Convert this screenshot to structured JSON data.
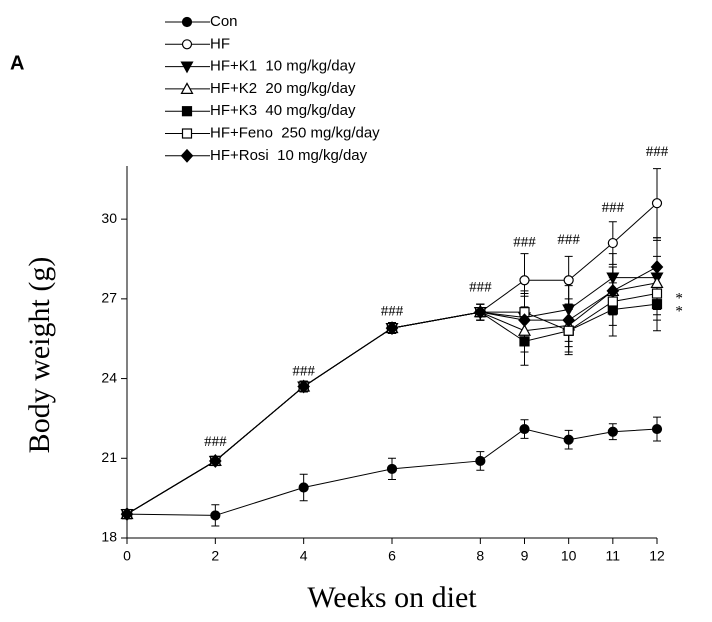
{
  "chart_data": {
    "type": "line",
    "panel_label": "A",
    "xlabel": "Weeks on diet",
    "ylabel": "Body weight (g)",
    "x": [
      0,
      2,
      4,
      6,
      8,
      9,
      10,
      11,
      12
    ],
    "xlim": [
      0,
      12
    ],
    "xticks": [
      0,
      2,
      4,
      6,
      8,
      9,
      10,
      11,
      12
    ],
    "ylim": [
      18,
      32
    ],
    "yticks": [
      18,
      21,
      24,
      27,
      30
    ],
    "grid": false,
    "legend": "top-left",
    "series": [
      {
        "name": "Con",
        "color": "#000000",
        "marker": "circle-filled",
        "values": [
          18.9,
          18.85,
          19.9,
          20.6,
          20.9,
          22.1,
          21.7,
          22.0,
          22.1
        ],
        "errors": [
          0.15,
          0.4,
          0.5,
          0.4,
          0.35,
          0.35,
          0.35,
          0.3,
          0.45
        ]
      },
      {
        "name": "HF",
        "color": "#000000",
        "marker": "circle-open",
        "values": [
          18.9,
          20.9,
          23.7,
          25.9,
          26.5,
          27.7,
          27.7,
          29.1,
          30.6
        ],
        "errors": [
          0.1,
          0.15,
          0.2,
          0.2,
          0.3,
          1.0,
          0.9,
          0.8,
          1.3
        ]
      },
      {
        "name": "HF+K1  10 mg/kg/day",
        "color": "#000000",
        "marker": "triangle-down-filled",
        "values": [
          18.9,
          20.9,
          23.7,
          25.9,
          26.5,
          26.3,
          26.6,
          27.8,
          27.8
        ],
        "errors": [
          0.1,
          0.15,
          0.2,
          0.2,
          0.3,
          0.9,
          0.9,
          0.9,
          1.4
        ]
      },
      {
        "name": "HF+K2  20 mg/kg/day",
        "color": "#000000",
        "marker": "triangle-up-open",
        "values": [
          18.9,
          20.9,
          23.7,
          25.9,
          26.5,
          25.8,
          26.0,
          27.3,
          27.6
        ],
        "errors": [
          0.1,
          0.15,
          0.2,
          0.2,
          0.3,
          0.8,
          0.8,
          0.9,
          1.0
        ]
      },
      {
        "name": "HF+K3  40 mg/kg/day",
        "color": "#000000",
        "marker": "square-filled",
        "values": [
          18.9,
          20.9,
          23.7,
          25.9,
          26.5,
          25.4,
          25.8,
          26.6,
          26.8
        ],
        "errors": [
          0.1,
          0.15,
          0.2,
          0.2,
          0.3,
          0.9,
          0.8,
          1.0,
          1.0
        ]
      },
      {
        "name": "HF+Feno  250 mg/kg/day",
        "color": "#000000",
        "marker": "square-open",
        "values": [
          18.9,
          20.9,
          23.7,
          25.9,
          26.5,
          26.5,
          25.8,
          26.9,
          27.2
        ],
        "errors": [
          0.1,
          0.15,
          0.2,
          0.2,
          0.3,
          0.8,
          0.9,
          0.9,
          1.0
        ]
      },
      {
        "name": "HF+Rosi  10 mg/kg/day",
        "color": "#000000",
        "marker": "diamond-filled",
        "values": [
          18.9,
          20.9,
          23.7,
          25.9,
          26.5,
          26.2,
          26.2,
          27.3,
          28.2
        ],
        "errors": [
          0.1,
          0.15,
          0.2,
          0.2,
          0.3,
          0.9,
          0.8,
          0.9,
          1.1
        ]
      }
    ],
    "annotations": [
      {
        "text": "###",
        "x": 2,
        "y": 21.6
      },
      {
        "text": "###",
        "x": 4,
        "y": 24.25
      },
      {
        "text": "###",
        "x": 6,
        "y": 26.5
      },
      {
        "text": "###",
        "x": 8,
        "y": 27.4
      },
      {
        "text": "###",
        "x": 9,
        "y": 29.1
      },
      {
        "text": "###",
        "x": 10,
        "y": 29.2
      },
      {
        "text": "###",
        "x": 11,
        "y": 30.4
      },
      {
        "text": "###",
        "x": 12,
        "y": 32.5
      },
      {
        "text": "*",
        "x": 12.5,
        "y": 27.0
      },
      {
        "text": "*",
        "x": 12.5,
        "y": 26.5
      }
    ]
  }
}
